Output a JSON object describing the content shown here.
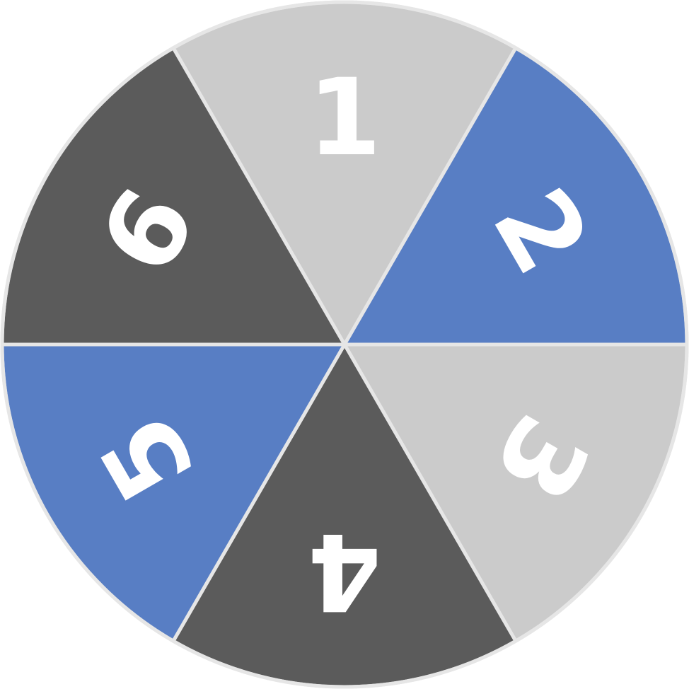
{
  "wheel": {
    "segments": [
      {
        "label": "1",
        "color": "#cbcbcb"
      },
      {
        "label": "2",
        "color": "#587ec4"
      },
      {
        "label": "3",
        "color": "#cbcbcb"
      },
      {
        "label": "4",
        "color": "#5b5b5b"
      },
      {
        "label": "5",
        "color": "#587ec4"
      },
      {
        "label": "6",
        "color": "#5b5b5b"
      }
    ]
  }
}
